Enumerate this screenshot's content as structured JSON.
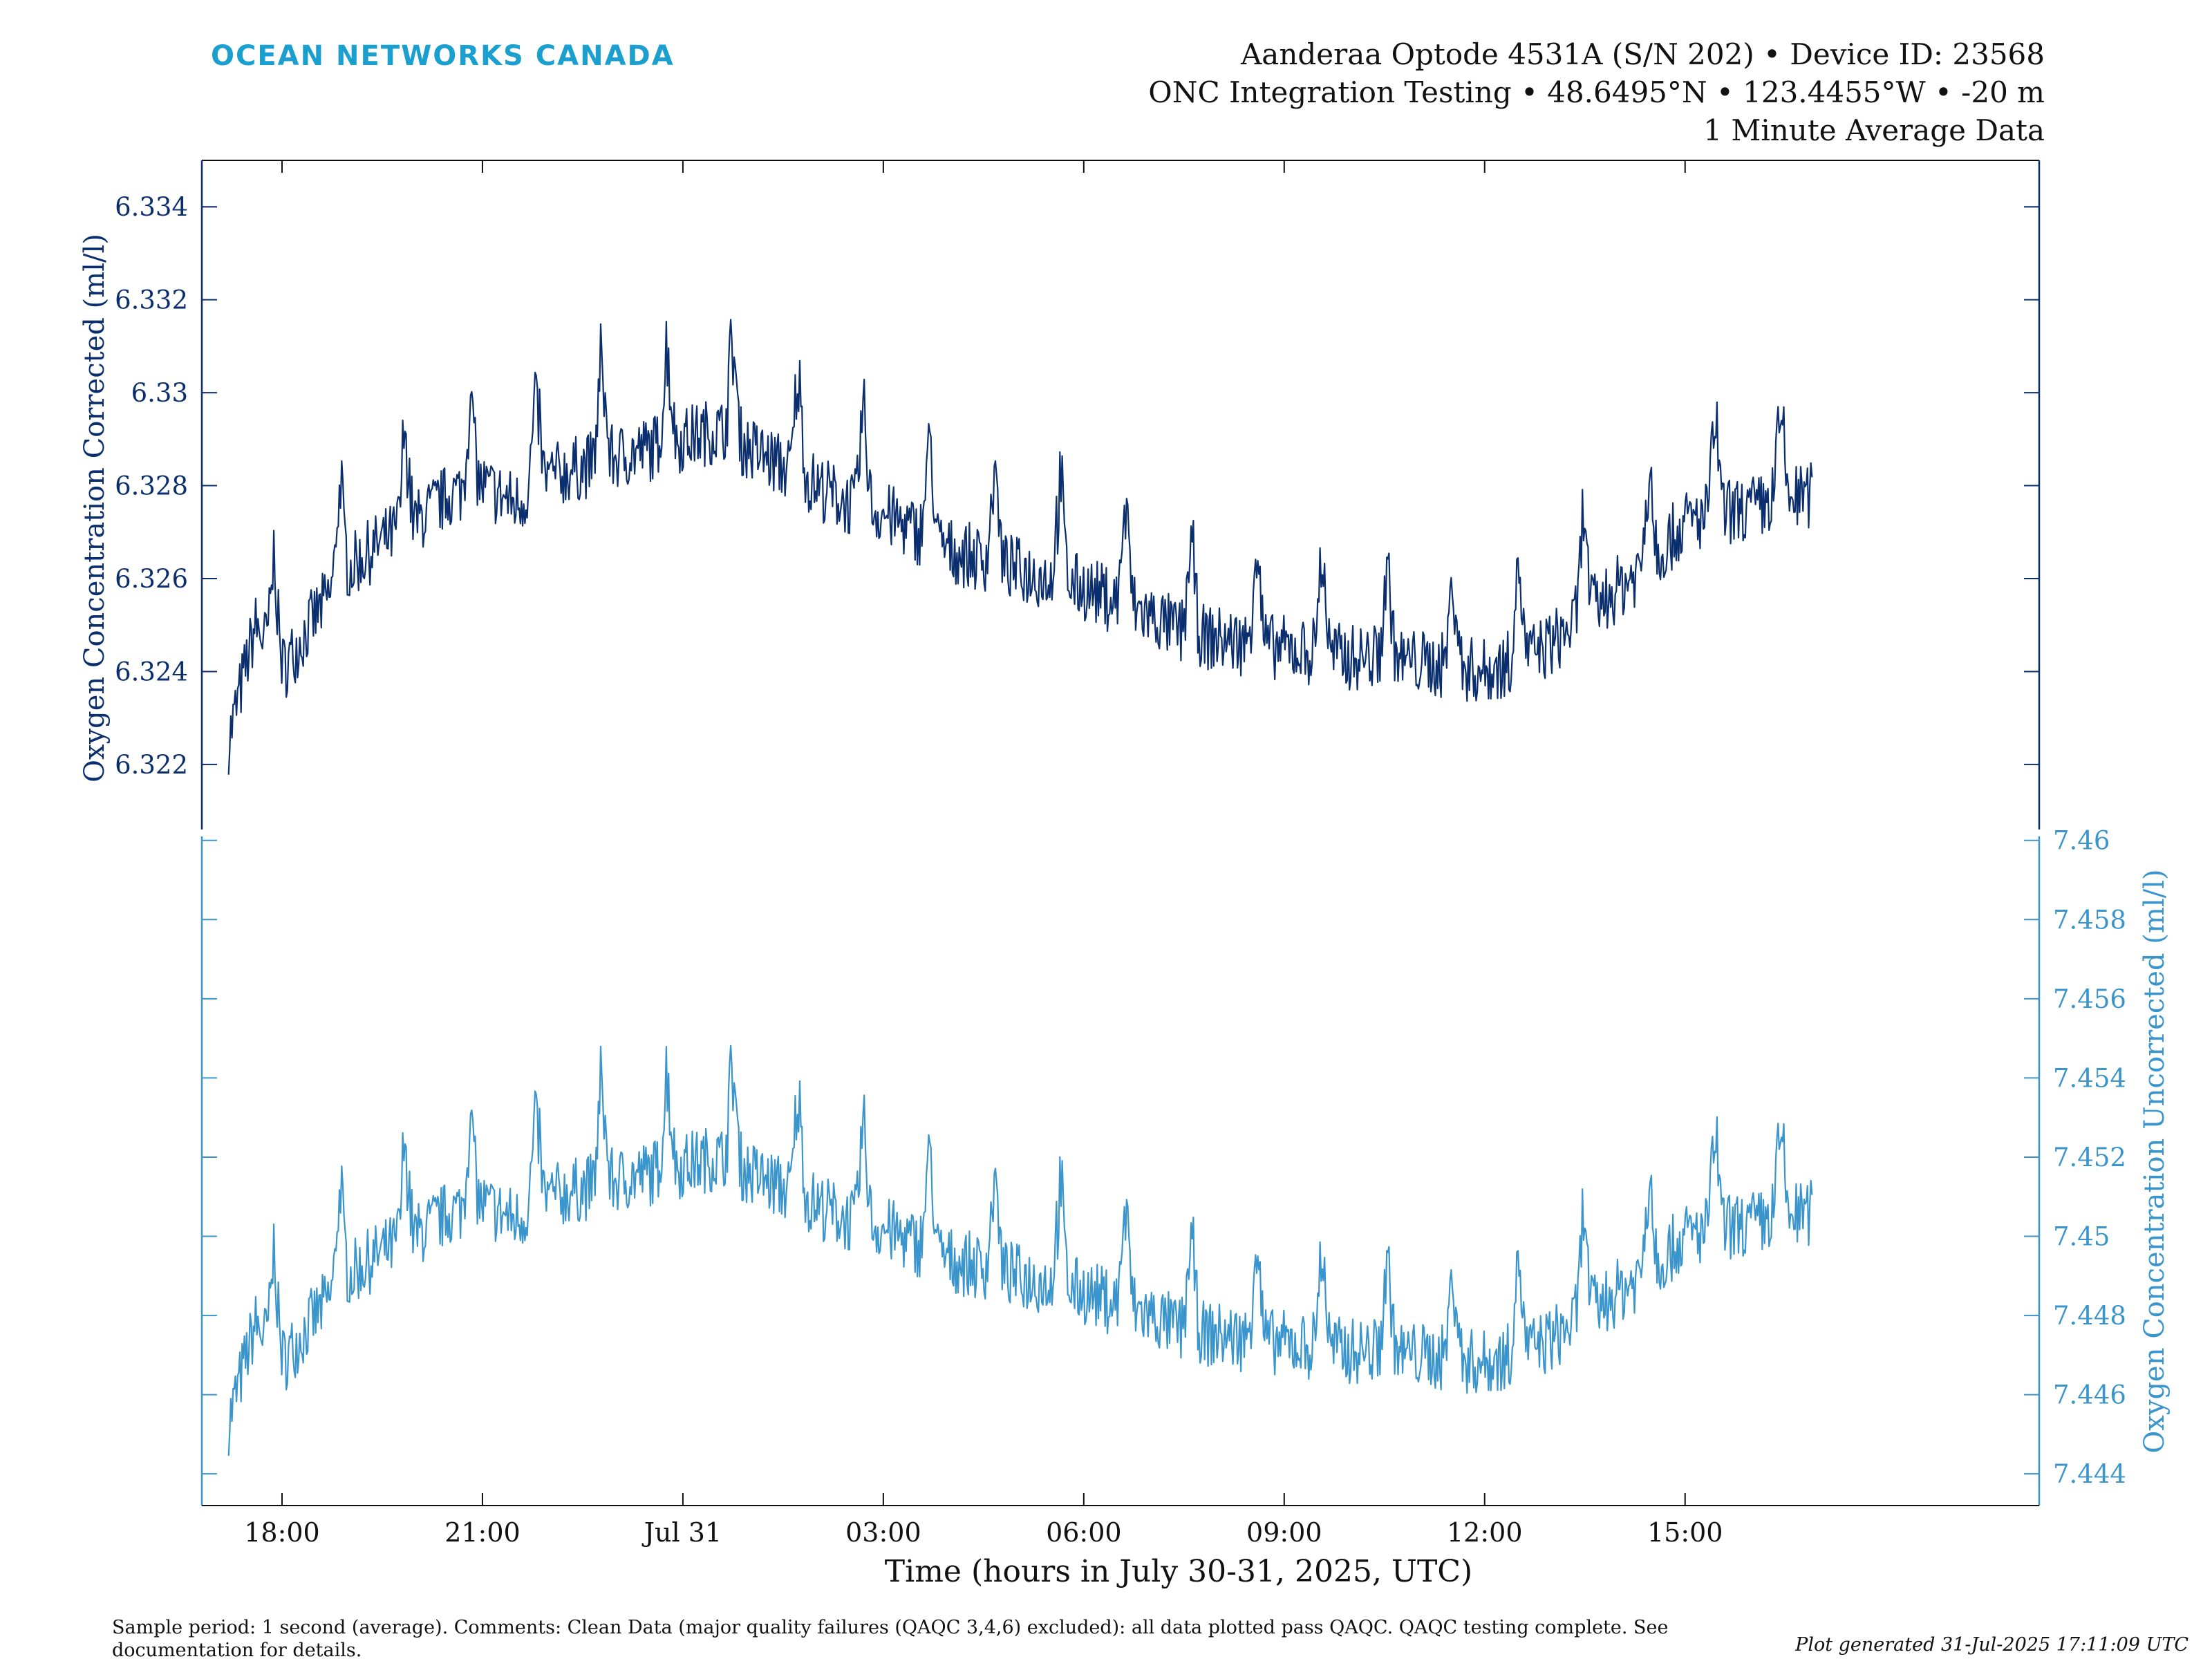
{
  "brand": {
    "name": "OCEAN NETWORKS CANADA",
    "color": "#1a9fcf"
  },
  "header": {
    "line1": "Aanderaa Optode 4531A (S/N 202) • Device ID: 23568",
    "line2": "ONC Integration Testing • 48.6495°N • 123.4455°W • -20 m",
    "line3": "1 Minute Average Data"
  },
  "footer": {
    "comment_line1": "Sample period: 1 second (average). Comments: Clean Data (major quality failures (QAQC 3,4,6) excluded): all data plotted pass QAQC. QAQC testing complete. See",
    "comment_line2": "documentation for details.",
    "generated": "Plot generated 31-Jul-2025 17:11:09 UTC"
  },
  "colors": {
    "corrected": "#0b2f6e",
    "uncorrected": "#3a95cc",
    "axis_text": "#111111"
  },
  "chart_data": {
    "type": "line",
    "xlabel": "Time (hours in July 30-31, 2025, UTC)",
    "x_tick_labels": [
      "18:00",
      "21:00",
      "Jul 31",
      "03:00",
      "06:00",
      "09:00",
      "12:00",
      "15:00"
    ],
    "x_tick_hours": [
      18,
      21,
      24,
      27,
      30,
      33,
      36,
      39
    ],
    "xlim_hours": [
      16.8,
      44.3
    ],
    "x_unit_note": "hours after 2025-07-30 00:00 UTC",
    "series": [
      {
        "name": "Oxygen Concentration Corrected (ml/l)",
        "axis": "left",
        "ylabel": "Oxygen Concentration Corrected (ml/l)",
        "ylim": [
          6.3206,
          6.335
        ],
        "yticks": [
          "6.322",
          "6.324",
          "6.326",
          "6.328",
          "6.33",
          "6.332",
          "6.334"
        ],
        "x_hours": [
          17.2,
          17.6,
          18.0,
          18.5,
          19.0,
          19.5,
          20.0,
          20.5,
          21.0,
          21.5,
          22.0,
          22.5,
          23.0,
          23.5,
          24.0,
          24.5,
          25.0,
          25.5,
          26.0,
          26.5,
          27.0,
          27.5,
          28.0,
          28.5,
          29.0,
          29.5,
          30.0,
          30.5,
          31.0,
          31.5,
          32.0,
          32.5,
          33.0,
          33.5,
          34.0,
          34.5,
          35.0,
          35.5,
          36.0,
          36.5,
          37.0,
          37.5,
          38.0,
          38.5,
          39.0,
          39.5,
          40.0,
          40.5,
          40.9
        ],
        "values": [
          6.3225,
          6.325,
          6.324,
          6.3252,
          6.3262,
          6.3268,
          6.3272,
          6.3278,
          6.328,
          6.3276,
          6.3282,
          6.3284,
          6.3286,
          6.3288,
          6.329,
          6.3292,
          6.3288,
          6.3284,
          6.328,
          6.3276,
          6.3274,
          6.327,
          6.3266,
          6.3264,
          6.3262,
          6.326,
          6.3258,
          6.3255,
          6.3252,
          6.3248,
          6.3247,
          6.3246,
          6.3245,
          6.3244,
          6.3243,
          6.3243,
          6.3242,
          6.3241,
          6.324,
          6.3242,
          6.3246,
          6.3252,
          6.3258,
          6.3264,
          6.3272,
          6.3274,
          6.3275,
          6.3277,
          6.3278
        ]
      },
      {
        "name": "Oxygen Concentration Uncorrected (ml/l)",
        "axis": "right",
        "ylabel": "Oxygen Concentration Uncorrected (ml/l)",
        "ylim": [
          7.4432,
          7.4601
        ],
        "yticks": [
          "7.444",
          "7.446",
          "7.448",
          "7.45",
          "7.452",
          "7.454",
          "7.456",
          "7.458",
          "7.46"
        ],
        "x_hours": [
          17.2,
          17.6,
          18.0,
          18.5,
          19.0,
          19.5,
          20.0,
          20.5,
          21.0,
          21.5,
          22.0,
          22.5,
          23.0,
          23.5,
          24.0,
          24.5,
          25.0,
          25.5,
          26.0,
          26.5,
          27.0,
          27.5,
          28.0,
          28.5,
          29.0,
          29.5,
          30.0,
          30.5,
          31.0,
          31.5,
          32.0,
          32.5,
          33.0,
          33.5,
          34.0,
          34.5,
          35.0,
          35.5,
          36.0,
          36.5,
          37.0,
          37.5,
          38.0,
          38.5,
          39.0,
          39.5,
          40.0,
          40.5,
          40.9
        ],
        "values": [
          7.4453,
          7.4478,
          7.4468,
          7.448,
          7.449,
          7.4496,
          7.45,
          7.4506,
          7.4508,
          7.4504,
          7.451,
          7.4512,
          7.4514,
          7.4516,
          7.4518,
          7.452,
          7.4516,
          7.4512,
          7.4508,
          7.4504,
          7.4502,
          7.4498,
          7.4494,
          7.4492,
          7.449,
          7.4488,
          7.4486,
          7.4483,
          7.448,
          7.4476,
          7.4475,
          7.4474,
          7.4473,
          7.4472,
          7.4471,
          7.4471,
          7.447,
          7.4469,
          7.4468,
          7.447,
          7.4474,
          7.448,
          7.4486,
          7.4492,
          7.45,
          7.4502,
          7.4503,
          7.4505,
          7.4506
        ]
      }
    ]
  }
}
